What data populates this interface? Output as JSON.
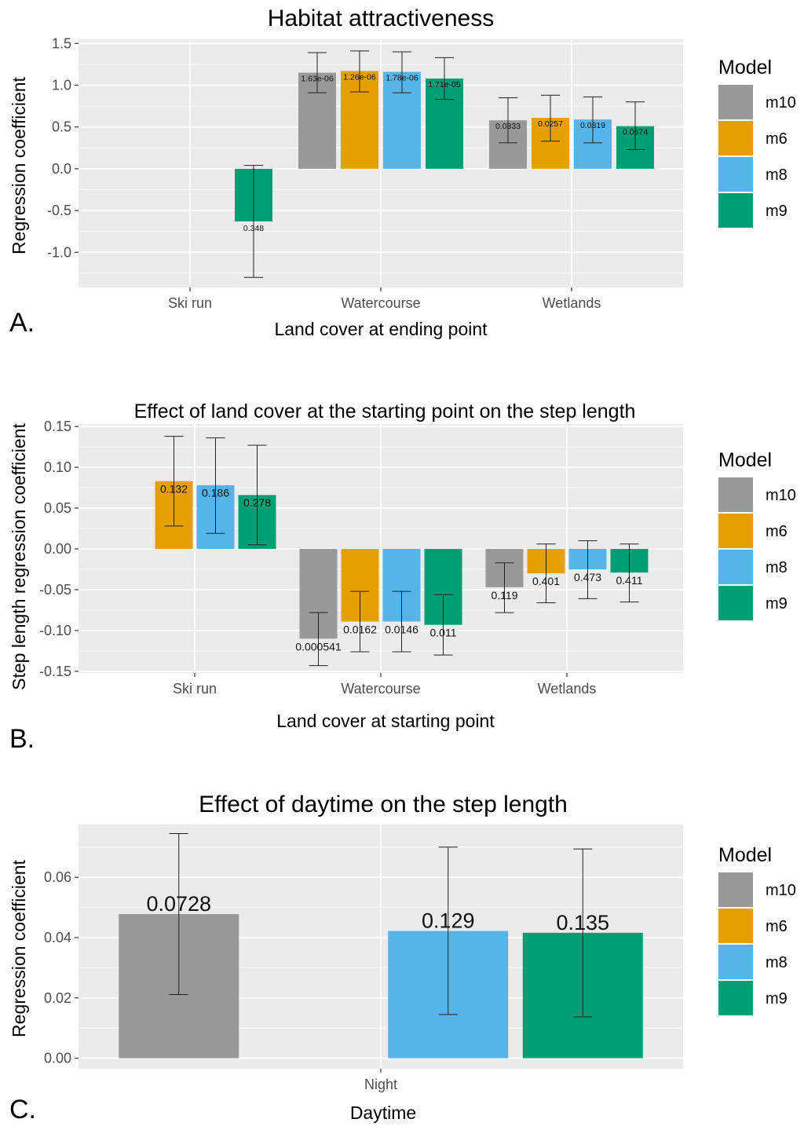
{
  "colors": {
    "panel_bg": "#ebebeb",
    "grid": "#ffffff",
    "axis_text": "#4d4d4d",
    "m10": "#999999",
    "m6": "#E69F00",
    "m8": "#56B4E9",
    "m9": "#009E73"
  },
  "legend": {
    "title": "Model",
    "entries": [
      "m10",
      "m6",
      "m8",
      "m9"
    ]
  },
  "chart_data": [
    {
      "type": "bar",
      "panel_label": "A.",
      "title": "Habitat attractiveness",
      "xlabel": "Land cover at ending point",
      "ylabel": "Regression coefficient",
      "categories": [
        "Ski run",
        "Watercourse",
        "Wetlands"
      ],
      "ylim": [
        -1.42,
        1.55
      ],
      "yticks": [
        -1.0,
        -0.5,
        0.0,
        0.5,
        1.0,
        1.5
      ],
      "ytick_labels": [
        "-1.0",
        "-0.5",
        "0.0",
        "0.5",
        "1.0",
        "1.5"
      ],
      "grid": true,
      "legend_position": "right",
      "series": [
        {
          "name": "m10",
          "values": [
            null,
            1.15,
            0.58
          ],
          "lower": [
            null,
            0.91,
            0.31
          ],
          "upper": [
            null,
            1.39,
            0.85
          ],
          "labels": [
            null,
            "1.63e-06",
            "0.0333"
          ]
        },
        {
          "name": "m6",
          "values": [
            null,
            1.17,
            0.61
          ],
          "lower": [
            null,
            0.92,
            0.33
          ],
          "upper": [
            null,
            1.41,
            0.88
          ],
          "labels": [
            null,
            "1.26e-06",
            "0.0257"
          ]
        },
        {
          "name": "m8",
          "values": [
            null,
            1.16,
            0.59
          ],
          "lower": [
            null,
            0.91,
            0.31
          ],
          "upper": [
            null,
            1.4,
            0.86
          ],
          "labels": [
            null,
            "1.78e-06",
            "0.0319"
          ]
        },
        {
          "name": "m9",
          "values": [
            -0.63,
            1.08,
            0.51
          ],
          "lower": [
            -1.3,
            0.83,
            0.23
          ],
          "upper": [
            0.04,
            1.33,
            0.8
          ],
          "labels": [
            "0.348",
            "1.71e-05",
            "0.0674"
          ]
        }
      ]
    },
    {
      "type": "bar",
      "panel_label": "B.",
      "title": "Effect of land cover at the starting point on the step length",
      "xlabel": "Land cover at starting point",
      "ylabel": "Step length regression coefficient",
      "categories": [
        "Ski run",
        "Watercourse",
        "Wetlands"
      ],
      "ylim": [
        -0.152,
        0.153
      ],
      "yticks": [
        -0.15,
        -0.1,
        -0.05,
        0.0,
        0.05,
        0.1,
        0.15
      ],
      "ytick_labels": [
        "-0.15",
        "-0.10",
        "-0.05",
        "0.00",
        "0.05",
        "0.10",
        "0.15"
      ],
      "grid": true,
      "legend_position": "right",
      "series": [
        {
          "name": "m10",
          "values": [
            null,
            -0.11,
            -0.047
          ],
          "lower": [
            null,
            -0.143,
            -0.078
          ],
          "upper": [
            null,
            -0.078,
            -0.017
          ],
          "labels": [
            null,
            "0.000541",
            "0.119"
          ]
        },
        {
          "name": "m6",
          "values": [
            0.083,
            -0.089,
            -0.03
          ],
          "lower": [
            0.028,
            -0.126,
            -0.066
          ],
          "upper": [
            0.138,
            -0.052,
            0.006
          ],
          "labels": [
            "0.132",
            "0.0162",
            "0.401"
          ]
        },
        {
          "name": "m8",
          "values": [
            0.078,
            -0.089,
            -0.025
          ],
          "lower": [
            0.019,
            -0.126,
            -0.061
          ],
          "upper": [
            0.136,
            -0.052,
            0.01
          ],
          "labels": [
            "0.186",
            "0.0146",
            "0.473"
          ]
        },
        {
          "name": "m9",
          "values": [
            0.066,
            -0.093,
            -0.029
          ],
          "lower": [
            0.005,
            -0.13,
            -0.065
          ],
          "upper": [
            0.127,
            -0.056,
            0.006
          ],
          "labels": [
            "0.278",
            "0.011",
            "0.411"
          ]
        }
      ]
    },
    {
      "type": "bar",
      "panel_label": "C.",
      "title": "Effect of daytime on the step length",
      "xlabel": "Daytime",
      "ylabel": "Regression coefficient",
      "categories": [
        "Night"
      ],
      "ylim": [
        -0.0035,
        0.0775
      ],
      "yticks": [
        0.0,
        0.02,
        0.04,
        0.06
      ],
      "ytick_labels": [
        "0.00",
        "0.02",
        "0.04",
        "0.06"
      ],
      "grid": true,
      "legend_position": "right",
      "series": [
        {
          "name": "m10",
          "values": [
            0.0478
          ],
          "lower": [
            0.0211
          ],
          "upper": [
            0.0745
          ],
          "labels": [
            "0.0728"
          ]
        },
        {
          "name": "m6",
          "values": [
            null
          ],
          "lower": [
            null
          ],
          "upper": [
            null
          ],
          "labels": [
            null
          ]
        },
        {
          "name": "m8",
          "values": [
            0.0422
          ],
          "lower": [
            0.0145
          ],
          "upper": [
            0.07
          ],
          "labels": [
            "0.129"
          ]
        },
        {
          "name": "m9",
          "values": [
            0.0416
          ],
          "lower": [
            0.0137
          ],
          "upper": [
            0.0694
          ],
          "labels": [
            "0.135"
          ]
        }
      ]
    }
  ]
}
